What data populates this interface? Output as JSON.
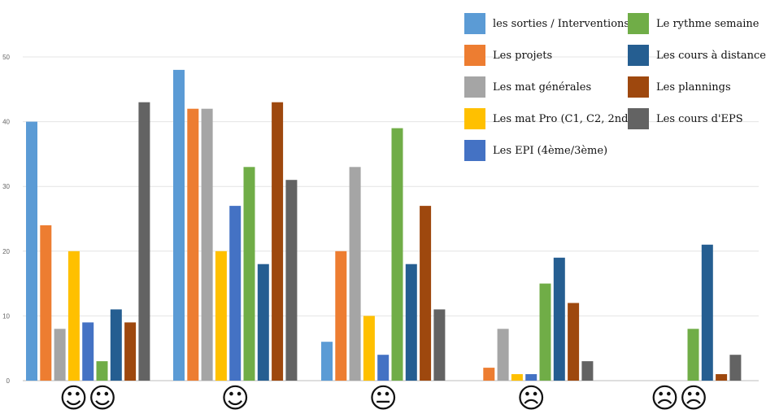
{
  "chart_data": {
    "type": "bar",
    "categories": [
      "☺☺",
      "☺",
      "😐",
      "☹",
      "☹☹"
    ],
    "ylim": [
      0,
      50
    ],
    "yticks": [
      0,
      10,
      20,
      30,
      40,
      50
    ],
    "grid": true,
    "legend_position": "top-right",
    "series": [
      {
        "name": "les sorties / Interventions",
        "color": "#5B9BD5",
        "values": [
          40,
          48,
          6,
          0,
          0
        ]
      },
      {
        "name": "Les projets",
        "color": "#ED7D31",
        "values": [
          24,
          42,
          20,
          2,
          0
        ]
      },
      {
        "name": "Les mat générales",
        "color": "#A5A5A5",
        "values": [
          8,
          42,
          33,
          8,
          0
        ]
      },
      {
        "name": "Les mat Pro (C1, C2, 2nde)",
        "color": "#FFC000",
        "values": [
          20,
          20,
          10,
          1,
          0
        ]
      },
      {
        "name": "Les EPI (4ème/3ème)",
        "color": "#4472C4",
        "values": [
          9,
          27,
          4,
          1,
          0
        ]
      },
      {
        "name": "Le rythme semaine",
        "color": "#70AD47",
        "values": [
          3,
          33,
          39,
          15,
          8
        ]
      },
      {
        "name": "Les cours à distance",
        "color": "#255E91",
        "values": [
          11,
          18,
          18,
          19,
          21
        ]
      },
      {
        "name": "Les plannings",
        "color": "#9E480E",
        "values": [
          9,
          43,
          27,
          12,
          1
        ]
      },
      {
        "name": "Les cours d'EPS",
        "color": "#636363",
        "values": [
          43,
          31,
          11,
          3,
          4
        ]
      }
    ]
  },
  "legend_order": [
    0,
    5,
    1,
    6,
    2,
    7,
    3,
    8,
    4
  ]
}
